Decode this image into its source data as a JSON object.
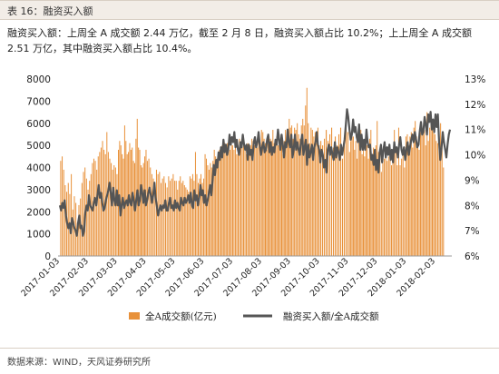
{
  "header": {
    "title": "表 16：融资买入额"
  },
  "description": "融资买入额：上周全 A 成交额 2.44 万亿，截至 2 月 8 日，融资买入额占比 10.2%；上上周全 A 成交额 2.51 万亿，其中融资买入额占比 10.4%。",
  "footer": {
    "source": "数据来源：WIND，天风证券研究所"
  },
  "chart_data": {
    "type": "bar",
    "title": "",
    "x_tick_labels": [
      "2017-01-03",
      "2017-02-03",
      "2017-03-03",
      "2017-04-03",
      "2017-05-03",
      "2017-06-03",
      "2017-07-03",
      "2017-08-03",
      "2017-09-03",
      "2017-10-03",
      "2017-11-03",
      "2017-12-03",
      "2018-01-03",
      "2018-02-03"
    ],
    "y_left": {
      "ticks": [
        "0",
        "1000",
        "2000",
        "3000",
        "4000",
        "5000",
        "6000",
        "7000",
        "8000"
      ],
      "ylim": [
        0,
        8000
      ]
    },
    "y_right": {
      "ticks": [
        "6%",
        "7%",
        "8%",
        "9%",
        "10%",
        "11%",
        "12%",
        "13%"
      ],
      "ylim": [
        6,
        13
      ]
    },
    "legend_position": "bottom",
    "grid": false,
    "colors": {
      "bars": "#e8913a",
      "line": "#555555"
    },
    "series": [
      {
        "name": "全A成交额(亿元)",
        "type": "bar",
        "axis": "left",
        "monthly_values": [
          [
            4300,
            4500,
            3900,
            3200,
            2900,
            3300,
            2800,
            3700,
            2100,
            2700,
            2400,
            1500,
            2300,
            2600,
            3300,
            3800,
            4000,
            3500,
            3000
          ],
          [
            3400,
            3700,
            4200,
            4400,
            4300,
            3900,
            4500,
            4700,
            4900,
            5200,
            4800,
            4600,
            5600,
            4700,
            4400,
            4200,
            3900,
            4100,
            4000,
            3700
          ],
          [
            4800,
            5200,
            5000,
            4600,
            4400,
            5900,
            5200,
            4600,
            4700,
            5100,
            4800,
            4900,
            4300,
            4200,
            5300,
            6200,
            4900,
            4800,
            4100,
            4000,
            4200,
            4500,
            4800
          ],
          [
            4300,
            4400,
            4000,
            3700,
            3500,
            3200,
            3900,
            3700,
            3800,
            3300,
            3500,
            3600,
            3300,
            3100,
            3600,
            3400,
            3500,
            3700,
            3400
          ],
          [
            3400,
            3000,
            3400,
            3600,
            3300,
            3400,
            3200,
            3100,
            3000,
            2900,
            3600,
            3500,
            3700,
            3400,
            4700,
            3700,
            3300,
            3500,
            3700,
            3300,
            3500
          ],
          [
            4600,
            4400,
            4100,
            3900,
            4200,
            4000,
            4300,
            4800,
            4500,
            4400,
            4600,
            4800,
            4900,
            5000,
            4900,
            5100,
            5000,
            5100,
            5000,
            4800,
            5100,
            5000
          ],
          [
            4800,
            4900,
            4600,
            5000,
            5300,
            4900,
            5000,
            5200,
            4800,
            4600,
            5100,
            4800,
            5000,
            5300,
            5200,
            5000,
            5100,
            4900,
            5300,
            5100,
            5700
          ],
          [
            5600,
            5300,
            5100,
            4800,
            5100,
            5400,
            5300,
            5200,
            5700,
            5100,
            5000,
            5400,
            5000,
            5500,
            5100,
            5000,
            4600,
            5200,
            5700,
            5100,
            5300,
            6200,
            5800
          ],
          [
            5900,
            5300,
            5800,
            5700,
            6000,
            5500,
            5300,
            5900,
            6200,
            5900,
            6800,
            7600,
            6000,
            5100,
            5800,
            5700,
            5400,
            5600,
            5100,
            5800,
            5000
          ],
          [
            5200,
            5000,
            5300,
            5700,
            5200,
            5500,
            5800,
            4900,
            5400,
            5000,
            5500,
            5800,
            4400,
            5000,
            5800,
            5600
          ],
          [
            4700,
            5200,
            5400,
            5400,
            4800,
            5200,
            4400,
            5200,
            5100,
            5700,
            4600,
            5200,
            4500,
            5400,
            5000,
            4400,
            5300,
            5700,
            4400,
            4900,
            4700,
            5000,
            6100
          ],
          [
            4700,
            4800,
            3800,
            4200,
            4400,
            4900,
            4300,
            4500,
            4900,
            4100,
            4600,
            5700,
            4900,
            4100,
            5800,
            4100,
            4400,
            4800,
            4000,
            5400
          ],
          [
            5500,
            5000,
            5400,
            5600,
            4900,
            5800,
            6100,
            5400,
            4900,
            4800,
            5600,
            5800,
            5500,
            5700,
            5000,
            6500,
            5200,
            5800,
            6000,
            5700,
            5800,
            5500
          ],
          [
            5200,
            5100,
            5600,
            6000,
            5100,
            4000
          ]
        ]
      },
      {
        "name": "融资买入额/全A成交额",
        "type": "line",
        "axis": "right",
        "unit": "%",
        "values": [
          8.0,
          7.8,
          8.1,
          7.9,
          8.2,
          7.6,
          7.3,
          7.1,
          7.3,
          6.9,
          7.5,
          7.3,
          7.1,
          7.0,
          6.8,
          7.3,
          7.6,
          7.1,
          7.2,
          6.8,
          7.0,
          7.7,
          8.0,
          7.8,
          8.4,
          8.0,
          7.9,
          7.8,
          8.1,
          8.3,
          8.0,
          8.4,
          8.8,
          8.3,
          8.5,
          8.1,
          7.8,
          7.9,
          8.2,
          8.4,
          8.6,
          8.9,
          8.5,
          8.0,
          8.7,
          8.2,
          8.0,
          8.6,
          8.0,
          8.4,
          7.6,
          8.0,
          8.3,
          7.9,
          8.1,
          8.2,
          8.0,
          8.4,
          8.1,
          8.0,
          8.5,
          8.2,
          7.8,
          8.2,
          8.6,
          8.0,
          8.2,
          8.8,
          8.5,
          8.1,
          8.6,
          8.0,
          8.2,
          8.5,
          8.7,
          8.4,
          8.1,
          8.4,
          8.9,
          8.3,
          8.0,
          7.6,
          7.8,
          8.0,
          7.8,
          8.0,
          7.9,
          8.2,
          7.8,
          7.8,
          8.1,
          8.3,
          7.9,
          8.0,
          7.8,
          8.2,
          7.9,
          8.1,
          7.9,
          7.8,
          8.3,
          8.1,
          8.0,
          8.3,
          8.1,
          8.2,
          8.4,
          8.1,
          8.5,
          8.0,
          7.9,
          8.6,
          8.2,
          8.4,
          8.0,
          8.3,
          8.8,
          8.4,
          8.6,
          8.1,
          8.4,
          8.0,
          8.2,
          8.5,
          8.8,
          8.4,
          9.0,
          9.6,
          9.2,
          9.8,
          9.5,
          10.1,
          9.8,
          10.3,
          9.9,
          10.6,
          10.1,
          10.4,
          10.0,
          10.2,
          10.8,
          10.4,
          10.7,
          10.5,
          10.9,
          10.3,
          10.6,
          10.2,
          10.0,
          10.5,
          10.3,
          10.8,
          10.4,
          10.2,
          10.4,
          9.8,
          10.4,
          10.0,
          10.2,
          9.8,
          10.5,
          10.7,
          10.3,
          10.5,
          10.9,
          10.4,
          10.0,
          10.3,
          10.5,
          10.1,
          10.2,
          10.6,
          10.8,
          10.1,
          10.5,
          10.0,
          10.3,
          10.1,
          10.6,
          10.4,
          11.0,
          10.6,
          10.2,
          10.8,
          10.4,
          9.9,
          10.5,
          10.3,
          11.0,
          10.5,
          10.3,
          10.8,
          9.9,
          10.2,
          10.8,
          10.2,
          10.5,
          10.2,
          10.0,
          10.5,
          10.8,
          10.0,
          10.3,
          10.6,
          9.6,
          10.4,
          9.9,
          10.1,
          10.4,
          9.8,
          10.3,
          10.5,
          10.9,
          10.4,
          10.2,
          9.7,
          10.2,
          10.0,
          9.5,
          9.8,
          9.3,
          10.2,
          10.4,
          10.0,
          10.3,
          10.0,
          9.8,
          10.5,
          9.9,
          10.3,
          10.1,
          9.8,
          10.4,
          10.0,
          10.3,
          10.6,
          11.2,
          11.8,
          11.5,
          11.0,
          10.6,
          10.8,
          11.4,
          10.9,
          11.1,
          10.7,
          10.5,
          11.2,
          10.2,
          10.8,
          10.2,
          10.6,
          10.2,
          11.0,
          10.5,
          10.3,
          10.4,
          9.8,
          10.0,
          9.6,
          10.2,
          9.4,
          9.8,
          9.3,
          10.1,
          10.4,
          9.7,
          10.2,
          10.5,
          9.9,
          10.3,
          10.0,
          10.4,
          9.8,
          10.2,
          9.7,
          10.5,
          10.1,
          10.3,
          9.9,
          10.4,
          10.7,
          10.2,
          10.0,
          10.3,
          9.8,
          10.2,
          10.5,
          10.0,
          10.3,
          10.6,
          10.8,
          10.5,
          10.9,
          10.6,
          10.3,
          10.4,
          10.9,
          11.3,
          10.8,
          10.9,
          11.5,
          11.2,
          10.8,
          11.6,
          11.3,
          11.7,
          11.0,
          11.4,
          10.9,
          11.6,
          11.1,
          11.6,
          10.5,
          9.8,
          10.3,
          10.9,
          10.5,
          10.2,
          9.9,
          10.4,
          10.8,
          11.0
        ]
      }
    ]
  }
}
